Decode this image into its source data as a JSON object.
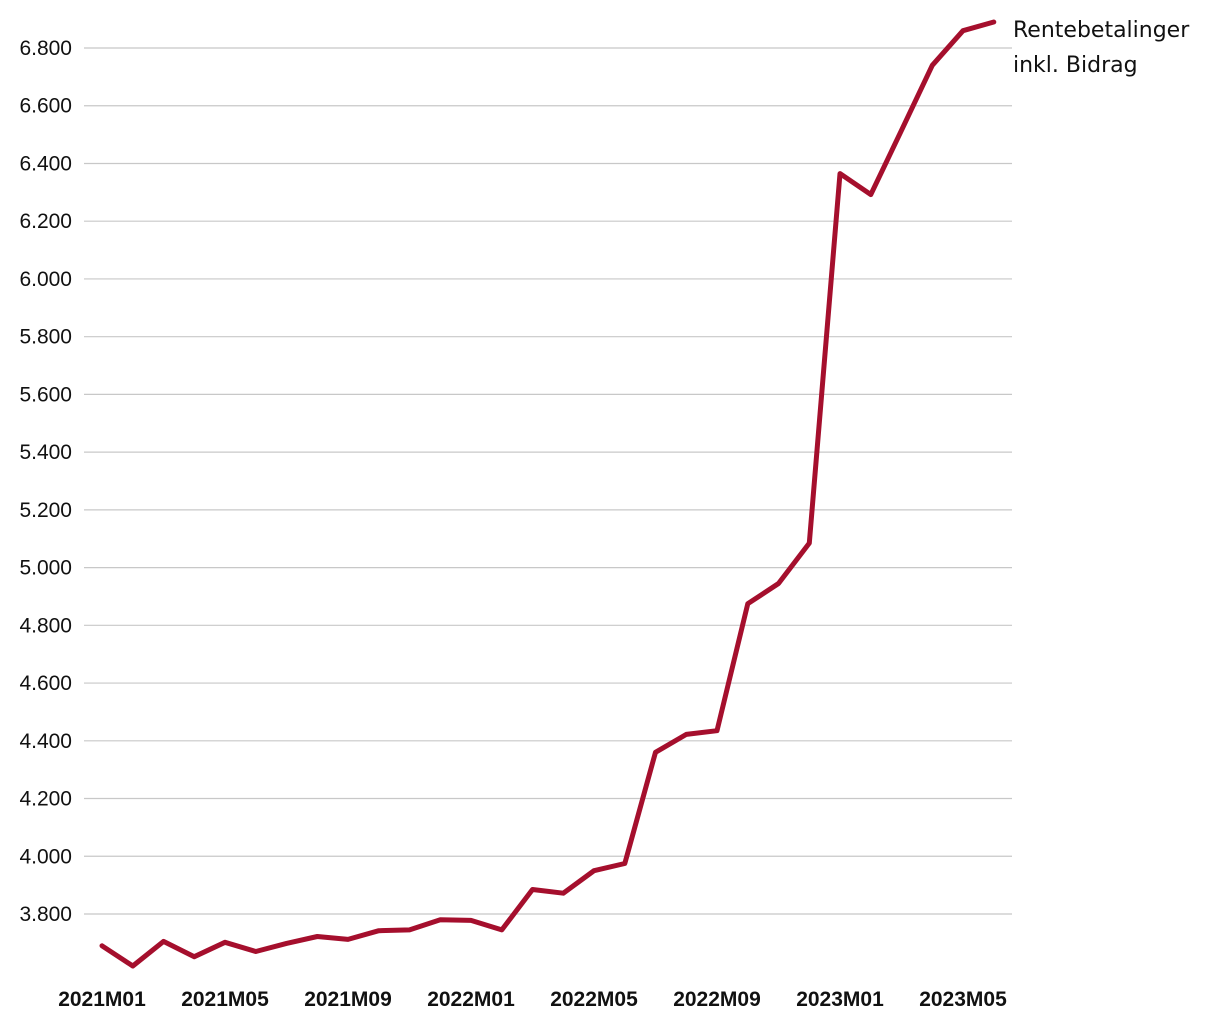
{
  "chart_data": {
    "type": "line",
    "title": "",
    "xlabel": "",
    "ylabel": "",
    "ylim": [
      3600,
      6900
    ],
    "yticks": [
      3800,
      4000,
      4200,
      4400,
      4600,
      4800,
      5000,
      5200,
      5400,
      5600,
      5800,
      6000,
      6200,
      6400,
      6600,
      6800
    ],
    "ytick_labels": [
      "3.800",
      "4.000",
      "4.200",
      "4.400",
      "4.600",
      "4.800",
      "5.000",
      "5.200",
      "5.400",
      "5.600",
      "5.800",
      "6.000",
      "6.200",
      "6.400",
      "6.600",
      "6.800"
    ],
    "grid": true,
    "x": [
      "2021M01",
      "2021M02",
      "2021M03",
      "2021M04",
      "2021M05",
      "2021M06",
      "2021M07",
      "2021M08",
      "2021M09",
      "2021M10",
      "2021M11",
      "2021M12",
      "2022M01",
      "2022M02",
      "2022M03",
      "2022M04",
      "2022M05",
      "2022M06",
      "2022M07",
      "2022M08",
      "2022M09",
      "2022M10",
      "2022M11",
      "2022M12",
      "2023M01",
      "2023M02",
      "2023M03",
      "2023M04",
      "2023M05",
      "2023M06"
    ],
    "xtick_labels": [
      "2021M01",
      "2021M05",
      "2021M09",
      "2022M01",
      "2022M05",
      "2022M09",
      "2023M01",
      "2023M05"
    ],
    "series": [
      {
        "name": "Rentebetalinger inkl. Bidrag",
        "name_lines": [
          "Rentebetalinger",
          "inkl. Bidrag"
        ],
        "color": "#a50f2d",
        "values": [
          3690,
          3620,
          3705,
          3652,
          3702,
          3670,
          3698,
          3722,
          3712,
          3742,
          3745,
          3780,
          3778,
          3745,
          3885,
          3872,
          3950,
          3975,
          4360,
          4422,
          4435,
          4875,
          4945,
          5085,
          6365,
          6292,
          6515,
          6740,
          6860,
          6890
        ]
      }
    ]
  }
}
